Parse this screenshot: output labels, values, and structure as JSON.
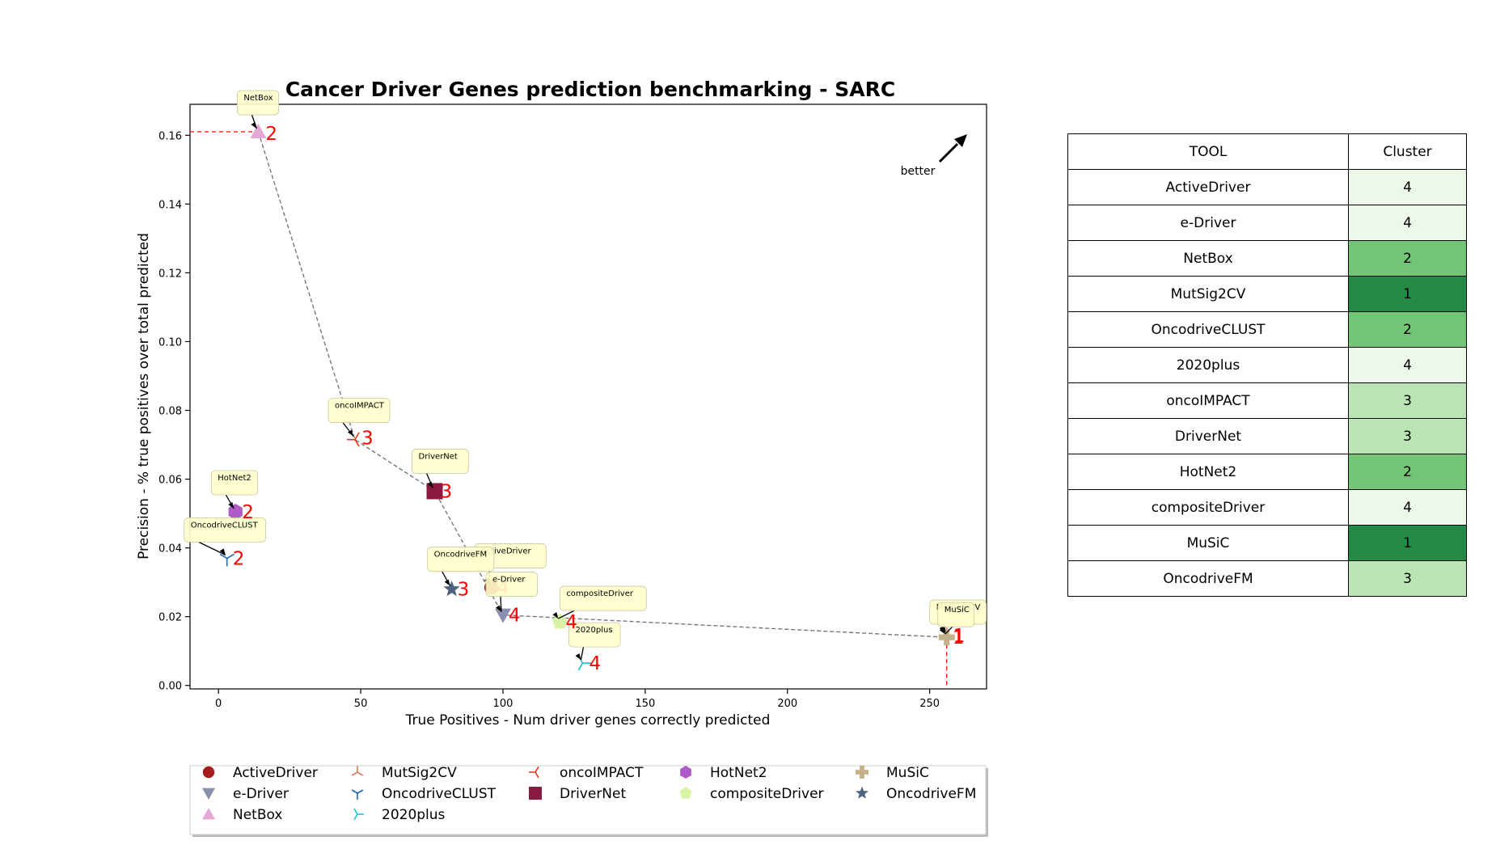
{
  "chart_data": {
    "type": "scatter",
    "title": "Cancer Driver Genes prediction benchmarking - SARC",
    "xlabel": "True Positives - Num driver genes correctly predicted",
    "ylabel": "Precision - % true positives over total predicted",
    "xlim": [
      -10,
      270
    ],
    "ylim": [
      -0.001,
      0.169
    ],
    "xticks": [
      0,
      50,
      100,
      150,
      200,
      250
    ],
    "yticks": [
      0.0,
      0.02,
      0.04,
      0.06,
      0.08,
      0.1,
      0.12,
      0.14,
      0.16
    ],
    "ytick_labels": [
      "0.00",
      "0.02",
      "0.04",
      "0.06",
      "0.08",
      "0.10",
      "0.12",
      "0.14",
      "0.16"
    ],
    "better_label": "better",
    "grid": false,
    "series": [
      {
        "name": "ActiveDriver",
        "x": 96,
        "y": 0.0285,
        "cluster": "4",
        "color": "#a51c1c",
        "marker": "circle"
      },
      {
        "name": "e-Driver",
        "x": 100,
        "y": 0.0205,
        "cluster": "4",
        "color": "#8a8fae",
        "marker": "triangle-down"
      },
      {
        "name": "NetBox",
        "x": 14,
        "y": 0.161,
        "cluster": "2",
        "color": "#e5a8d4",
        "marker": "triangle-up"
      },
      {
        "name": "MutSig2CV",
        "x": 256,
        "y": 0.0145,
        "cluster": "1",
        "color": "#e07a5f",
        "marker": "tri-down"
      },
      {
        "name": "OncodriveCLUST",
        "x": 3,
        "y": 0.037,
        "cluster": "2",
        "color": "#2166ac",
        "marker": "tri-up"
      },
      {
        "name": "2020plus",
        "x": 128,
        "y": 0.0065,
        "cluster": "4",
        "color": "#17becf",
        "marker": "tri-left"
      },
      {
        "name": "oncoIMPACT",
        "x": 48,
        "y": 0.0715,
        "cluster": "3",
        "color": "#e8341c",
        "marker": "tri-right"
      },
      {
        "name": "DriverNet",
        "x": 76,
        "y": 0.0565,
        "cluster": "3",
        "color": "#8b1a3f",
        "marker": "square"
      },
      {
        "name": "HotNet2",
        "x": 6,
        "y": 0.0505,
        "cluster": "2",
        "color": "#b05cc8",
        "marker": "hexagon"
      },
      {
        "name": "compositeDriver",
        "x": 120,
        "y": 0.0185,
        "cluster": "4",
        "color": "#d9f2a6",
        "marker": "pentagon"
      },
      {
        "name": "MuSiC",
        "x": 256,
        "y": 0.014,
        "cluster": "1",
        "color": "#c4b089",
        "marker": "plus"
      },
      {
        "name": "OncodriveFM",
        "x": 82,
        "y": 0.028,
        "cluster": "3",
        "color": "#4e6380",
        "marker": "star"
      }
    ],
    "pareto_front": [
      [
        14,
        0.161
      ],
      [
        48,
        0.0715
      ],
      [
        76,
        0.0565
      ],
      [
        100,
        0.0205
      ],
      [
        256,
        0.014
      ]
    ],
    "legend_placement": "bottom"
  },
  "table": {
    "headers": [
      "TOOL",
      "Cluster"
    ],
    "rows": [
      {
        "tool": "ActiveDriver",
        "cluster": "4",
        "color": "#edf8e9"
      },
      {
        "tool": "e-Driver",
        "cluster": "4",
        "color": "#edf8e9"
      },
      {
        "tool": "NetBox",
        "cluster": "2",
        "color": "#74c476"
      },
      {
        "tool": "MutSig2CV",
        "cluster": "1",
        "color": "#238b45"
      },
      {
        "tool": "OncodriveCLUST",
        "cluster": "2",
        "color": "#74c476"
      },
      {
        "tool": "2020plus",
        "cluster": "4",
        "color": "#edf8e9"
      },
      {
        "tool": "oncoIMPACT",
        "cluster": "3",
        "color": "#bae4b3"
      },
      {
        "tool": "DriverNet",
        "cluster": "3",
        "color": "#bae4b3"
      },
      {
        "tool": "HotNet2",
        "cluster": "2",
        "color": "#74c476"
      },
      {
        "tool": "compositeDriver",
        "cluster": "4",
        "color": "#edf8e9"
      },
      {
        "tool": "MuSiC",
        "cluster": "1",
        "color": "#238b45"
      },
      {
        "tool": "OncodriveFM",
        "cluster": "3",
        "color": "#bae4b3"
      }
    ]
  }
}
